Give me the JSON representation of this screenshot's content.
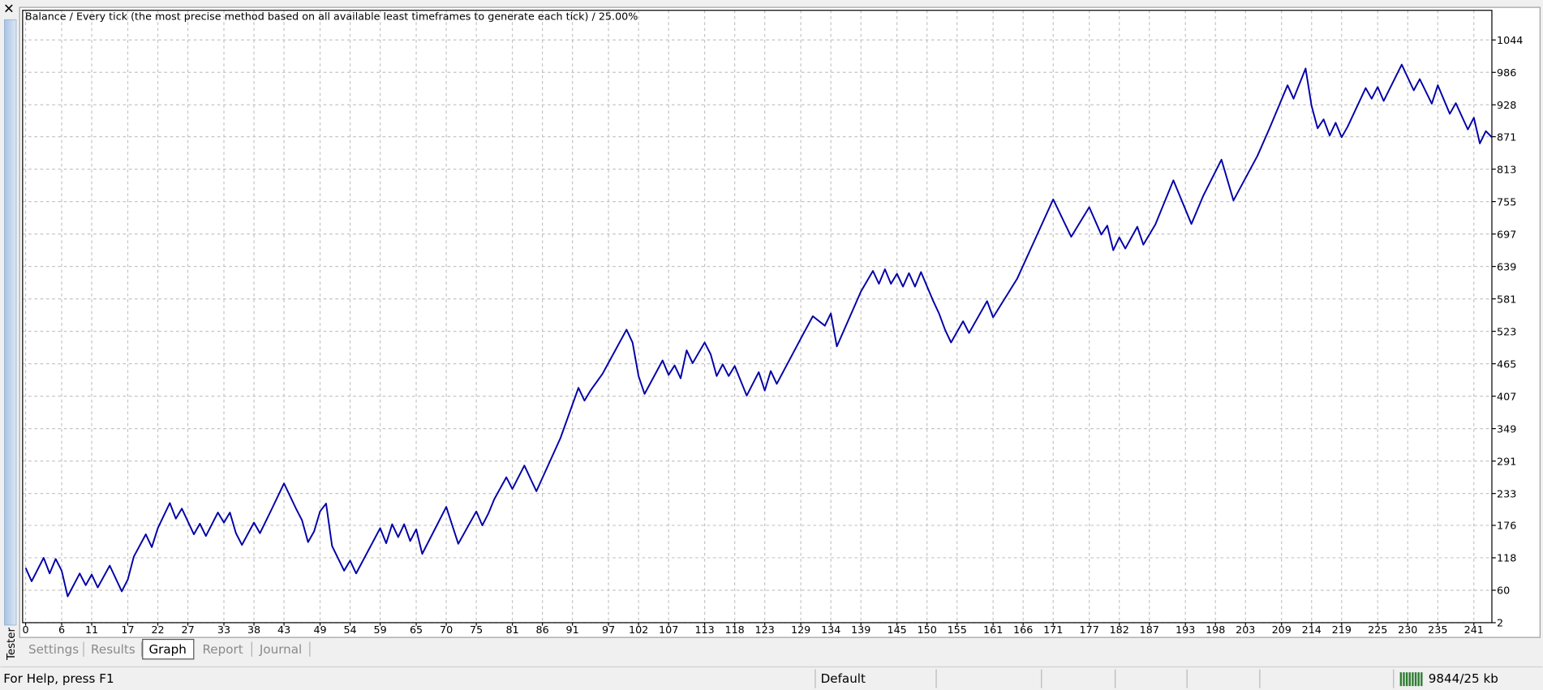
{
  "side_label": "Tester",
  "tabs": [
    {
      "label": "Settings"
    },
    {
      "label": "Results"
    },
    {
      "label": "Graph",
      "active": true
    },
    {
      "label": "Report"
    },
    {
      "label": "Journal"
    }
  ],
  "status_bar": {
    "help": "For Help, press F1",
    "profile": "Default",
    "memory": "9844/25 kb"
  },
  "chart_data": {
    "type": "line",
    "title": "Balance / Every tick (the most precise method based on all available least timeframes to generate each tick) / 25.00%",
    "color": "#0000a8",
    "grid": true,
    "xlim": [
      -0.5,
      244
    ],
    "ylim": [
      2,
      1097
    ],
    "xticks": [
      0,
      6,
      11,
      17,
      22,
      27,
      33,
      38,
      43,
      49,
      54,
      59,
      65,
      70,
      75,
      81,
      86,
      91,
      97,
      102,
      107,
      113,
      118,
      123,
      129,
      134,
      139,
      145,
      150,
      155,
      161,
      166,
      171,
      177,
      182,
      187,
      193,
      198,
      203,
      209,
      214,
      219,
      225,
      230,
      235,
      241
    ],
    "yticks": [
      2,
      60,
      118,
      176,
      233,
      291,
      349,
      407,
      465,
      523,
      581,
      639,
      697,
      755,
      813,
      871,
      928,
      986,
      1044
    ],
    "x": [
      0,
      1,
      3,
      4,
      5,
      6,
      7,
      9,
      10,
      11,
      12,
      14,
      16,
      17,
      18,
      20,
      21,
      22,
      24,
      25,
      26,
      28,
      29,
      30,
      32,
      33,
      34,
      35,
      36,
      38,
      39,
      41,
      43,
      45,
      46,
      47,
      48,
      49,
      50,
      51,
      53,
      54,
      55,
      59,
      60,
      61,
      62,
      63,
      64,
      65,
      66,
      70,
      72,
      75,
      76,
      77,
      78,
      80,
      81,
      83,
      85,
      89,
      92,
      93,
      94,
      96,
      100,
      101,
      102,
      103,
      106,
      107,
      108,
      109,
      110,
      111,
      113,
      114,
      115,
      116,
      117,
      118,
      120,
      122,
      123,
      124,
      125,
      129,
      131,
      133,
      134,
      135,
      139,
      141,
      142,
      143,
      144,
      145,
      146,
      147,
      148,
      149,
      151,
      152,
      153,
      154,
      156,
      157,
      160,
      161,
      165,
      171,
      174,
      177,
      179,
      180,
      181,
      182,
      183,
      185,
      186,
      188,
      191,
      194,
      196,
      199,
      201,
      205,
      207,
      210,
      211,
      213,
      214,
      215,
      216,
      217,
      218,
      219,
      220,
      223,
      224,
      225,
      226,
      229,
      231,
      232,
      234,
      235,
      237,
      238,
      240,
      241,
      242,
      243,
      244
    ],
    "values": [
      100,
      76,
      118,
      90,
      116,
      95,
      49,
      90,
      69,
      88,
      65,
      104,
      58,
      79,
      120,
      160,
      137,
      171,
      216,
      188,
      206,
      160,
      179,
      157,
      199,
      181,
      199,
      162,
      141,
      181,
      162,
      206,
      251,
      206,
      185,
      146,
      165,
      201,
      215,
      139,
      95,
      113,
      90,
      171,
      144,
      178,
      155,
      178,
      148,
      169,
      125,
      209,
      143,
      201,
      176,
      197,
      223,
      262,
      241,
      283,
      237,
      332,
      422,
      399,
      417,
      447,
      526,
      503,
      443,
      411,
      471,
      445,
      462,
      439,
      489,
      466,
      503,
      482,
      443,
      464,
      443,
      461,
      408,
      450,
      417,
      452,
      429,
      510,
      550,
      533,
      555,
      496,
      594,
      631,
      608,
      634,
      608,
      626,
      603,
      627,
      603,
      629,
      578,
      555,
      526,
      503,
      541,
      520,
      577,
      548,
      617,
      759,
      692,
      745,
      696,
      712,
      668,
      691,
      671,
      710,
      678,
      714,
      793,
      715,
      766,
      830,
      757,
      837,
      886,
      963,
      939,
      993,
      926,
      886,
      902,
      873,
      896,
      870,
      889,
      958,
      939,
      960,
      935,
      1000,
      954,
      974,
      930,
      963,
      912,
      931,
      884,
      905,
      859,
      881,
      870
    ]
  }
}
